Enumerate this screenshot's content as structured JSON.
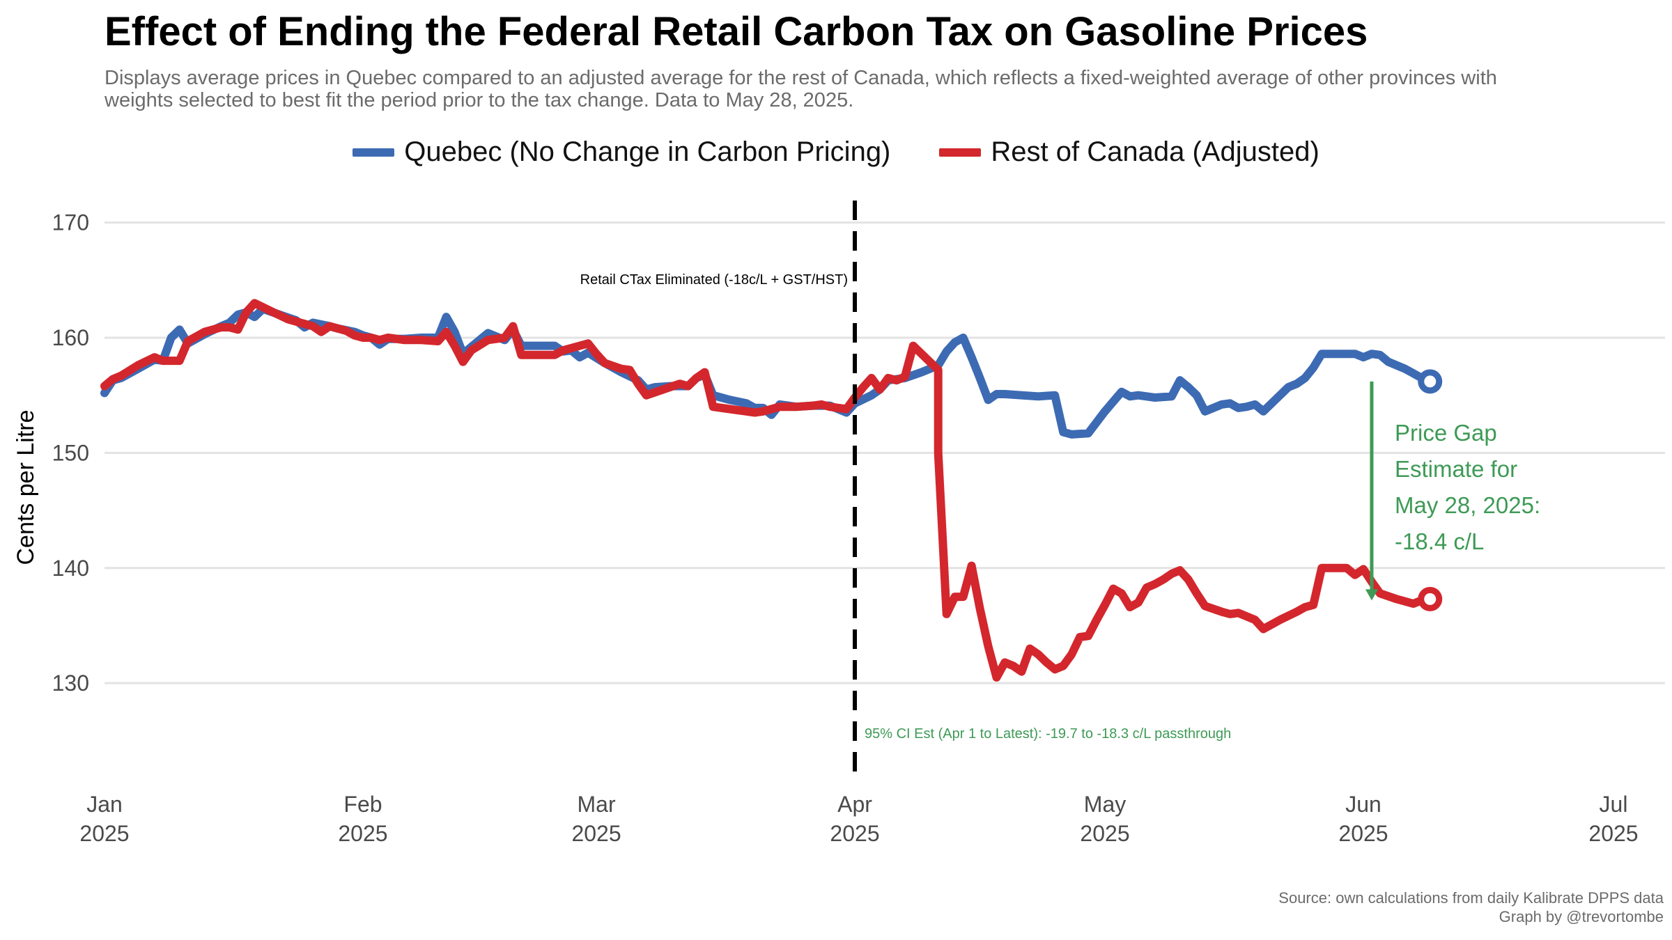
{
  "title": "Effect of Ending the Federal Retail Carbon Tax on Gasoline Prices",
  "subtitle": "Displays average prices in Quebec compared to an adjusted average for the rest of Canada, which reflects a fixed-weighted average of other provinces with weights selected to best fit the period prior to the tax change. Data to May 28, 2025.",
  "caption": {
    "source": "Source: own calculations from daily Kalibrate DPPS data",
    "credit": "Graph by @trevortombe"
  },
  "annotations": {
    "tax_event": "Retail CTax Eliminated (-18c/L + GST/HST)",
    "ci": "95% CI Est (Apr 1 to Latest):  -19.7 to -18.3 c/L passthrough",
    "gap": [
      "Price Gap",
      "Estimate for",
      "May 28, 2025:",
      "-18.4 c/L"
    ]
  },
  "colors": {
    "quebec": "#3d6bb3",
    "rest": "#d3272d",
    "gap": "#3e9a56",
    "grid": "#e3e3e3"
  },
  "chart_data": {
    "type": "line",
    "ylabel": "Cents per Litre",
    "ylim": [
      121,
      173
    ],
    "yticks": [
      130,
      140,
      150,
      160,
      170
    ],
    "xlim": [
      "2025-01-01",
      "2025-07-01"
    ],
    "xticks": [
      {
        "date": "2025-01-01",
        "label": [
          "Jan",
          "2025"
        ]
      },
      {
        "date": "2025-02-01",
        "label": [
          "Feb",
          "2025"
        ]
      },
      {
        "date": "2025-03-01",
        "label": [
          "Mar",
          "2025"
        ]
      },
      {
        "date": "2025-04-01",
        "label": [
          "Apr",
          "2025"
        ]
      },
      {
        "date": "2025-05-01",
        "label": [
          "May",
          "2025"
        ]
      },
      {
        "date": "2025-06-01",
        "label": [
          "Jun",
          "2025"
        ]
      },
      {
        "date": "2025-07-01",
        "label": [
          "Jul",
          "2025"
        ]
      }
    ],
    "grid": true,
    "legend_position": "top",
    "event_date": "2025-04-01",
    "gap_arrow": {
      "date": "2025-06-02",
      "from": 156.2,
      "to": 137.3
    },
    "series": [
      {
        "name": "Quebec (No Change in Carbon Pricing)",
        "color": "#3d6bb3",
        "points": [
          [
            "2025-01-01",
            155.2
          ],
          [
            "2025-01-02",
            156.3
          ],
          [
            "2025-01-03",
            156.5
          ],
          [
            "2025-01-05",
            157.3
          ],
          [
            "2025-01-07",
            158.1
          ],
          [
            "2025-01-08",
            158.0
          ],
          [
            "2025-01-09",
            160.0
          ],
          [
            "2025-01-10",
            160.7
          ],
          [
            "2025-01-11",
            159.5
          ],
          [
            "2025-01-13",
            160.3
          ],
          [
            "2025-01-15",
            161.0
          ],
          [
            "2025-01-16",
            161.3
          ],
          [
            "2025-01-17",
            162.0
          ],
          [
            "2025-01-18",
            162.2
          ],
          [
            "2025-01-19",
            161.8
          ],
          [
            "2025-01-20",
            162.5
          ],
          [
            "2025-01-22",
            162.0
          ],
          [
            "2025-01-24",
            161.5
          ],
          [
            "2025-01-25",
            160.9
          ],
          [
            "2025-01-26",
            161.3
          ],
          [
            "2025-01-28",
            161.0
          ],
          [
            "2025-01-29",
            160.8
          ],
          [
            "2025-01-31",
            160.5
          ],
          [
            "2025-02-01",
            160.2
          ],
          [
            "2025-02-02",
            160.0
          ],
          [
            "2025-02-03",
            159.4
          ],
          [
            "2025-02-04",
            159.9
          ],
          [
            "2025-02-06",
            159.9
          ],
          [
            "2025-02-08",
            160.0
          ],
          [
            "2025-02-10",
            160.0
          ],
          [
            "2025-02-11",
            161.8
          ],
          [
            "2025-02-12",
            160.5
          ],
          [
            "2025-02-13",
            158.6
          ],
          [
            "2025-02-14",
            159.2
          ],
          [
            "2025-02-16",
            160.4
          ],
          [
            "2025-02-18",
            159.8
          ],
          [
            "2025-02-19",
            160.7
          ],
          [
            "2025-02-20",
            159.3
          ],
          [
            "2025-02-22",
            159.3
          ],
          [
            "2025-02-24",
            159.3
          ],
          [
            "2025-02-25",
            158.8
          ],
          [
            "2025-02-26",
            158.9
          ],
          [
            "2025-02-27",
            158.3
          ],
          [
            "2025-02-28",
            158.7
          ],
          [
            "2025-03-02",
            157.8
          ],
          [
            "2025-03-04",
            157.0
          ],
          [
            "2025-03-06",
            156.3
          ],
          [
            "2025-03-07",
            155.5
          ],
          [
            "2025-03-08",
            155.7
          ],
          [
            "2025-03-10",
            155.8
          ],
          [
            "2025-03-12",
            155.8
          ],
          [
            "2025-03-13",
            156.5
          ],
          [
            "2025-03-14",
            156.8
          ],
          [
            "2025-03-15",
            155.0
          ],
          [
            "2025-03-17",
            154.6
          ],
          [
            "2025-03-19",
            154.3
          ],
          [
            "2025-03-20",
            153.9
          ],
          [
            "2025-03-21",
            153.9
          ],
          [
            "2025-03-22",
            153.3
          ],
          [
            "2025-03-23",
            154.2
          ],
          [
            "2025-03-25",
            154.0
          ],
          [
            "2025-03-27",
            154.1
          ],
          [
            "2025-03-29",
            154.1
          ],
          [
            "2025-03-31",
            153.5
          ],
          [
            "2025-04-01",
            154.3
          ],
          [
            "2025-04-03",
            155.0
          ],
          [
            "2025-04-04",
            155.5
          ],
          [
            "2025-04-05",
            156.3
          ],
          [
            "2025-04-07",
            156.5
          ],
          [
            "2025-04-09",
            157.0
          ],
          [
            "2025-04-10",
            157.3
          ],
          [
            "2025-04-11",
            157.6
          ],
          [
            "2025-04-12",
            158.8
          ],
          [
            "2025-04-13",
            159.6
          ],
          [
            "2025-04-14",
            160.0
          ],
          [
            "2025-04-15",
            158.3
          ],
          [
            "2025-04-16",
            156.5
          ],
          [
            "2025-04-17",
            154.6
          ],
          [
            "2025-04-18",
            155.1
          ],
          [
            "2025-04-19",
            155.1
          ],
          [
            "2025-04-21",
            155.0
          ],
          [
            "2025-04-23",
            154.9
          ],
          [
            "2025-04-25",
            155.0
          ],
          [
            "2025-04-26",
            151.8
          ],
          [
            "2025-04-27",
            151.6
          ],
          [
            "2025-04-29",
            151.7
          ],
          [
            "2025-05-01",
            153.6
          ],
          [
            "2025-05-03",
            155.3
          ],
          [
            "2025-05-04",
            154.9
          ],
          [
            "2025-05-05",
            155.0
          ],
          [
            "2025-05-07",
            154.8
          ],
          [
            "2025-05-09",
            154.9
          ],
          [
            "2025-05-10",
            156.3
          ],
          [
            "2025-05-11",
            155.7
          ],
          [
            "2025-05-12",
            155.0
          ],
          [
            "2025-05-13",
            153.6
          ],
          [
            "2025-05-15",
            154.2
          ],
          [
            "2025-05-16",
            154.3
          ],
          [
            "2025-05-17",
            153.9
          ],
          [
            "2025-05-18",
            154.0
          ],
          [
            "2025-05-19",
            154.2
          ],
          [
            "2025-05-20",
            153.6
          ],
          [
            "2025-05-22",
            155.0
          ],
          [
            "2025-05-23",
            155.7
          ],
          [
            "2025-05-24",
            156.0
          ],
          [
            "2025-05-25",
            156.5
          ],
          [
            "2025-05-26",
            157.4
          ],
          [
            "2025-05-27",
            158.6
          ],
          [
            "2025-05-29",
            158.6
          ],
          [
            "2025-05-31",
            158.6
          ],
          [
            "2025-06-01",
            158.3
          ],
          [
            "2025-06-02",
            158.6
          ],
          [
            "2025-06-03",
            158.5
          ],
          [
            "2025-06-04",
            157.9
          ],
          [
            "2025-06-06",
            157.3
          ],
          [
            "2025-06-07",
            156.9
          ],
          [
            "2025-06-08",
            156.5
          ],
          [
            "2025-06-09",
            156.2
          ]
        ]
      },
      {
        "name": "Rest of Canada (Adjusted)",
        "color": "#d3272d",
        "points": [
          [
            "2025-01-01",
            155.8
          ],
          [
            "2025-01-02",
            156.4
          ],
          [
            "2025-01-03",
            156.7
          ],
          [
            "2025-01-05",
            157.6
          ],
          [
            "2025-01-07",
            158.3
          ],
          [
            "2025-01-08",
            158.0
          ],
          [
            "2025-01-10",
            158.0
          ],
          [
            "2025-01-11",
            159.7
          ],
          [
            "2025-01-13",
            160.5
          ],
          [
            "2025-01-15",
            160.9
          ],
          [
            "2025-01-16",
            160.9
          ],
          [
            "2025-01-17",
            160.7
          ],
          [
            "2025-01-18",
            162.2
          ],
          [
            "2025-01-19",
            163.0
          ],
          [
            "2025-01-21",
            162.3
          ],
          [
            "2025-01-23",
            161.6
          ],
          [
            "2025-01-25",
            161.2
          ],
          [
            "2025-01-26",
            161.0
          ],
          [
            "2025-01-27",
            160.5
          ],
          [
            "2025-01-28",
            161.0
          ],
          [
            "2025-01-30",
            160.6
          ],
          [
            "2025-01-31",
            160.2
          ],
          [
            "2025-02-01",
            160.0
          ],
          [
            "2025-02-02",
            160.0
          ],
          [
            "2025-02-03",
            159.8
          ],
          [
            "2025-02-04",
            160.0
          ],
          [
            "2025-02-06",
            159.8
          ],
          [
            "2025-02-08",
            159.8
          ],
          [
            "2025-02-10",
            159.7
          ],
          [
            "2025-02-11",
            160.5
          ],
          [
            "2025-02-12",
            159.3
          ],
          [
            "2025-02-13",
            157.9
          ],
          [
            "2025-02-14",
            158.9
          ],
          [
            "2025-02-16",
            159.8
          ],
          [
            "2025-02-18",
            160.0
          ],
          [
            "2025-02-19",
            161.0
          ],
          [
            "2025-02-20",
            158.5
          ],
          [
            "2025-02-22",
            158.5
          ],
          [
            "2025-02-24",
            158.5
          ],
          [
            "2025-02-25",
            158.9
          ],
          [
            "2025-02-27",
            159.3
          ],
          [
            "2025-02-28",
            159.5
          ],
          [
            "2025-03-01",
            158.6
          ],
          [
            "2025-03-02",
            157.8
          ],
          [
            "2025-03-04",
            157.3
          ],
          [
            "2025-03-05",
            157.2
          ],
          [
            "2025-03-06",
            156.0
          ],
          [
            "2025-03-07",
            155.0
          ],
          [
            "2025-03-09",
            155.5
          ],
          [
            "2025-03-11",
            156.0
          ],
          [
            "2025-03-12",
            155.8
          ],
          [
            "2025-03-13",
            156.5
          ],
          [
            "2025-03-14",
            157.0
          ],
          [
            "2025-03-15",
            154.0
          ],
          [
            "2025-03-17",
            153.8
          ],
          [
            "2025-03-19",
            153.6
          ],
          [
            "2025-03-20",
            153.5
          ],
          [
            "2025-03-21",
            153.6
          ],
          [
            "2025-03-23",
            154.0
          ],
          [
            "2025-03-25",
            154.0
          ],
          [
            "2025-03-27",
            154.1
          ],
          [
            "2025-03-28",
            154.2
          ],
          [
            "2025-03-29",
            154.0
          ],
          [
            "2025-03-31",
            153.8
          ],
          [
            "2025-04-01",
            154.8
          ],
          [
            "2025-04-02",
            155.7
          ],
          [
            "2025-04-03",
            156.5
          ],
          [
            "2025-04-04",
            155.5
          ],
          [
            "2025-04-05",
            156.5
          ],
          [
            "2025-04-06",
            156.3
          ],
          [
            "2025-04-07",
            156.6
          ],
          [
            "2025-04-08",
            159.3
          ],
          [
            "2025-04-09",
            158.6
          ],
          [
            "2025-04-10",
            157.9
          ],
          [
            "2025-04-11",
            157.2
          ],
          [
            "2025-04-11",
            150.0
          ],
          [
            "2025-04-12",
            136.0
          ],
          [
            "2025-04-13",
            137.5
          ],
          [
            "2025-04-14",
            137.5
          ],
          [
            "2025-04-15",
            140.2
          ],
          [
            "2025-04-16",
            136.5
          ],
          [
            "2025-04-17",
            133.2
          ],
          [
            "2025-04-18",
            130.5
          ],
          [
            "2025-04-19",
            131.8
          ],
          [
            "2025-04-20",
            131.5
          ],
          [
            "2025-04-21",
            131.0
          ],
          [
            "2025-04-22",
            133.0
          ],
          [
            "2025-04-23",
            132.5
          ],
          [
            "2025-04-24",
            131.8
          ],
          [
            "2025-04-25",
            131.2
          ],
          [
            "2025-04-26",
            131.5
          ],
          [
            "2025-04-27",
            132.5
          ],
          [
            "2025-04-28",
            134.0
          ],
          [
            "2025-04-29",
            134.1
          ],
          [
            "2025-04-30",
            135.5
          ],
          [
            "2025-05-01",
            136.8
          ],
          [
            "2025-05-02",
            138.2
          ],
          [
            "2025-05-03",
            137.8
          ],
          [
            "2025-05-04",
            136.6
          ],
          [
            "2025-05-05",
            137.0
          ],
          [
            "2025-05-06",
            138.3
          ],
          [
            "2025-05-07",
            138.6
          ],
          [
            "2025-05-08",
            139.0
          ],
          [
            "2025-05-09",
            139.5
          ],
          [
            "2025-05-10",
            139.8
          ],
          [
            "2025-05-11",
            139.0
          ],
          [
            "2025-05-12",
            137.8
          ],
          [
            "2025-05-13",
            136.7
          ],
          [
            "2025-05-15",
            136.2
          ],
          [
            "2025-05-16",
            136.0
          ],
          [
            "2025-05-17",
            136.1
          ],
          [
            "2025-05-19",
            135.5
          ],
          [
            "2025-05-20",
            134.7
          ],
          [
            "2025-05-22",
            135.5
          ],
          [
            "2025-05-24",
            136.2
          ],
          [
            "2025-05-25",
            136.6
          ],
          [
            "2025-05-26",
            136.8
          ],
          [
            "2025-05-27",
            140.0
          ],
          [
            "2025-05-29",
            140.0
          ],
          [
            "2025-05-30",
            140.0
          ],
          [
            "2025-05-31",
            139.4
          ],
          [
            "2025-06-01",
            139.9
          ],
          [
            "2025-06-02",
            138.8
          ],
          [
            "2025-06-03",
            137.8
          ],
          [
            "2025-06-05",
            137.3
          ],
          [
            "2025-06-07",
            136.9
          ],
          [
            "2025-06-08",
            137.2
          ],
          [
            "2025-06-09",
            137.3
          ]
        ]
      }
    ]
  }
}
